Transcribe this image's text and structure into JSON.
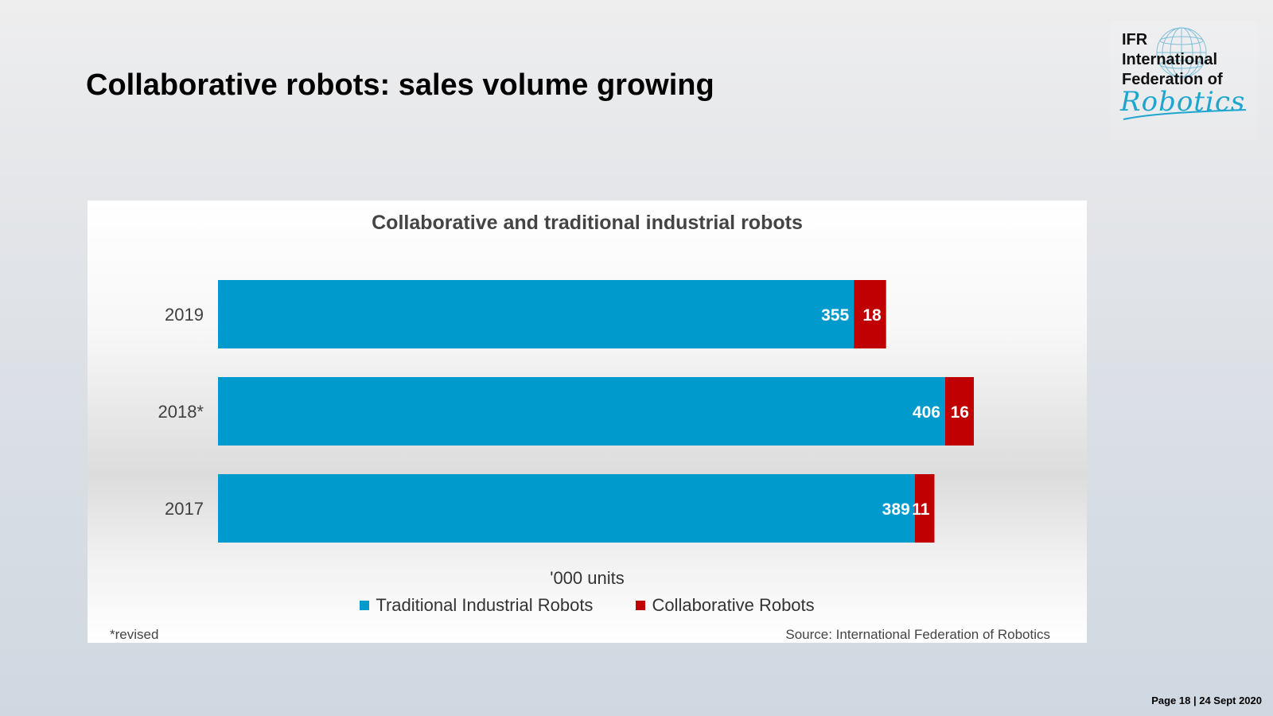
{
  "slide": {
    "title": "Collaborative robots: sales volume growing",
    "footer": "Page 18 | 24 Sept 2020"
  },
  "logo": {
    "line1": "IFR",
    "line2": "International",
    "line3": "Federation of",
    "script": "Robotics"
  },
  "colors": {
    "traditional": "#009acd",
    "collaborative": "#c00000",
    "logo_accent": "#1ea6cf"
  },
  "chart_data": {
    "type": "bar",
    "orientation": "horizontal",
    "stacked": true,
    "title": "Collaborative and traditional industrial robots",
    "categories": [
      "2019",
      "2018*",
      "2017"
    ],
    "series": [
      {
        "name": "Traditional Industrial Robots",
        "values": [
          355,
          406,
          389
        ]
      },
      {
        "name": "Collaborative Robots",
        "values": [
          18,
          16,
          11
        ]
      }
    ],
    "unit_label": "'000 units",
    "xlim": [
      0,
      430
    ],
    "grid": false,
    "legend_position": "bottom",
    "footnote": "*revised",
    "source": "Source: International Federation of Robotics"
  }
}
